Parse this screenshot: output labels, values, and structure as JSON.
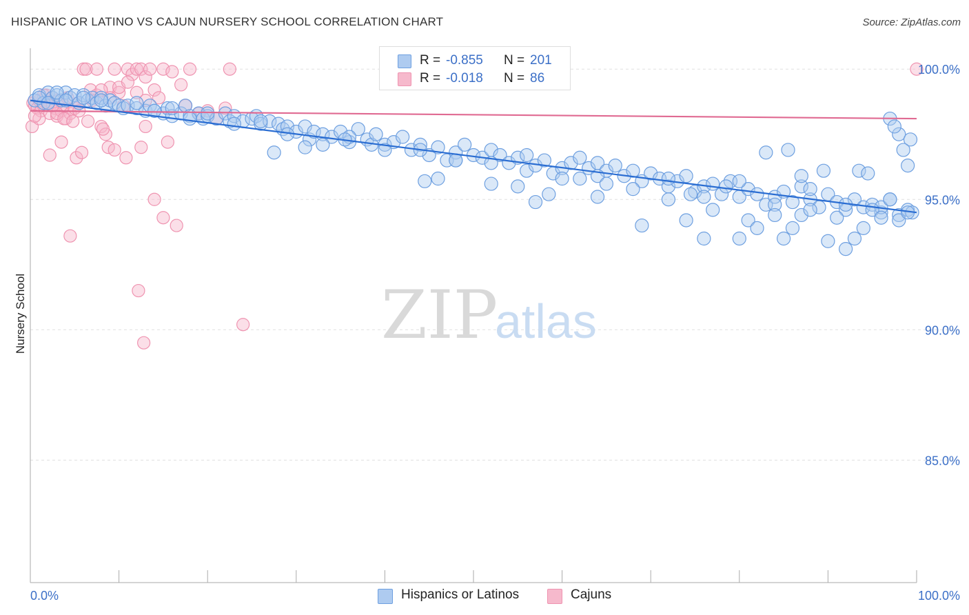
{
  "title": "HISPANIC OR LATINO VS CAJUN NURSERY SCHOOL CORRELATION CHART",
  "source": "Source: ZipAtlas.com",
  "watermark": {
    "zip": "ZIP",
    "atlas": "atlas"
  },
  "legend": {
    "rows": [
      {
        "r_label": "R =",
        "r_value": "-0.855",
        "n_label": "N =",
        "n_value": "201"
      },
      {
        "r_label": "R =",
        "r_value": "-0.018",
        "n_label": "N =",
        "n_value": "86"
      }
    ]
  },
  "bottom_legend": {
    "series1": "Hispanics or Latinos",
    "series2": "Cajuns"
  },
  "colors": {
    "blue_fill": "#aecbf0",
    "blue_stroke": "#6d9fe0",
    "blue_line": "#2a6dd2",
    "pink_fill": "#f6b9cc",
    "pink_stroke": "#ef93b0",
    "pink_line": "#e06a92",
    "tick_text": "#3b6fc7",
    "grid": "#e0e0e0"
  },
  "chart_data": {
    "type": "scatter",
    "title": "HISPANIC OR LATINO VS CAJUN NURSERY SCHOOL CORRELATION CHART",
    "xlabel": "",
    "ylabel": "Nursery School",
    "xlim": [
      0,
      100
    ],
    "ylim": [
      80.3,
      100.8
    ],
    "x_tick_labels": [
      "0.0%",
      "100.0%"
    ],
    "y_ticks": [
      85,
      90,
      95,
      100
    ],
    "y_tick_labels": [
      "85.0%",
      "90.0%",
      "95.0%",
      "100.0%"
    ],
    "grid": true,
    "legend_position": "top-center",
    "series": [
      {
        "name": "Hispanics or Latinos",
        "r": -0.855,
        "n": 201,
        "trend": {
          "x": [
            0,
            100
          ],
          "y": [
            98.8,
            94.5
          ]
        },
        "points": [
          [
            0.5,
            98.8
          ],
          [
            1,
            99
          ],
          [
            1.5,
            98.7
          ],
          [
            2,
            99.1
          ],
          [
            2.5,
            98.9
          ],
          [
            3,
            99
          ],
          [
            3.5,
            98.8
          ],
          [
            4,
            99.1
          ],
          [
            4.5,
            98.9
          ],
          [
            5,
            99
          ],
          [
            5.5,
            98.7
          ],
          [
            6,
            99
          ],
          [
            6.5,
            98.8
          ],
          [
            7,
            98.9
          ],
          [
            7.5,
            98.7
          ],
          [
            8,
            98.9
          ],
          [
            8.5,
            98.6
          ],
          [
            9,
            98.8
          ],
          [
            9.5,
            98.7
          ],
          [
            10,
            98.6
          ],
          [
            10.5,
            98.5
          ],
          [
            11,
            98.6
          ],
          [
            12,
            98.5
          ],
          [
            13,
            98.4
          ],
          [
            13.5,
            98.6
          ],
          [
            14,
            98.4
          ],
          [
            15,
            98.3
          ],
          [
            15.5,
            98.5
          ],
          [
            16,
            98.2
          ],
          [
            17,
            98.3
          ],
          [
            17.5,
            98.6
          ],
          [
            18,
            98.2
          ],
          [
            19,
            98.3
          ],
          [
            19.5,
            98.1
          ],
          [
            20,
            98.2
          ],
          [
            21,
            98.1
          ],
          [
            22,
            98.3
          ],
          [
            22.5,
            98
          ],
          [
            23,
            98.2
          ],
          [
            24,
            98
          ],
          [
            25,
            98.1
          ],
          [
            25.5,
            98.2
          ],
          [
            26,
            97.9
          ],
          [
            27,
            98
          ],
          [
            28,
            97.9
          ],
          [
            28.5,
            97.7
          ],
          [
            29,
            97.8
          ],
          [
            30,
            97.6
          ],
          [
            31,
            97.8
          ],
          [
            31.5,
            97.3
          ],
          [
            32,
            97.6
          ],
          [
            33,
            97.5
          ],
          [
            34,
            97.4
          ],
          [
            35,
            97.6
          ],
          [
            36,
            97.2
          ],
          [
            37,
            97.7
          ],
          [
            38,
            97.3
          ],
          [
            38.5,
            97.1
          ],
          [
            39,
            97.5
          ],
          [
            40,
            97.1
          ],
          [
            41,
            97.2
          ],
          [
            42,
            97.4
          ],
          [
            43,
            96.9
          ],
          [
            44,
            97.1
          ],
          [
            45,
            96.7
          ],
          [
            46,
            97
          ],
          [
            47,
            96.5
          ],
          [
            48,
            96.8
          ],
          [
            49,
            97.1
          ],
          [
            50,
            96.7
          ],
          [
            51,
            96.6
          ],
          [
            52,
            96.9
          ],
          [
            53,
            96.7
          ],
          [
            54,
            96.4
          ],
          [
            55,
            96.6
          ],
          [
            56,
            96.1
          ],
          [
            57,
            96.3
          ],
          [
            58,
            96.5
          ],
          [
            59,
            96
          ],
          [
            60,
            96.2
          ],
          [
            61,
            96.4
          ],
          [
            62,
            96.6
          ],
          [
            63,
            96.2
          ],
          [
            64,
            96.4
          ],
          [
            65,
            96.1
          ],
          [
            66,
            96.3
          ],
          [
            67,
            95.9
          ],
          [
            68,
            96.1
          ],
          [
            69,
            95.7
          ],
          [
            70,
            96
          ],
          [
            71,
            95.8
          ],
          [
            72,
            95.5
          ],
          [
            73,
            95.7
          ],
          [
            74,
            95.9
          ],
          [
            75,
            95.3
          ],
          [
            76,
            95.5
          ],
          [
            77,
            95.6
          ],
          [
            78,
            95.2
          ],
          [
            79,
            95.7
          ],
          [
            80,
            95.1
          ],
          [
            81,
            95.4
          ],
          [
            82,
            95.2
          ],
          [
            83,
            94.8
          ],
          [
            84,
            95.1
          ],
          [
            85,
            95.3
          ],
          [
            86,
            94.9
          ],
          [
            87,
            95.5
          ],
          [
            88,
            95
          ],
          [
            89,
            94.7
          ],
          [
            90,
            95.2
          ],
          [
            91,
            94.9
          ],
          [
            92,
            94.6
          ],
          [
            93,
            95
          ],
          [
            94,
            94.7
          ],
          [
            95,
            94.8
          ],
          [
            96,
            94.5
          ],
          [
            97,
            95
          ],
          [
            98,
            94.4
          ],
          [
            99,
            94.6
          ],
          [
            99.5,
            94.5
          ],
          [
            1,
            98.9
          ],
          [
            2,
            98.7
          ],
          [
            3,
            99.1
          ],
          [
            4,
            98.8
          ],
          [
            6,
            98.9
          ],
          [
            8,
            98.8
          ],
          [
            12,
            98.7
          ],
          [
            14,
            98.4
          ],
          [
            16,
            98.5
          ],
          [
            18,
            98.1
          ],
          [
            20,
            98.3
          ],
          [
            23,
            97.9
          ],
          [
            26,
            98
          ],
          [
            29,
            97.5
          ],
          [
            33,
            97.1
          ],
          [
            36,
            97.4
          ],
          [
            40,
            96.9
          ],
          [
            44,
            96.9
          ],
          [
            48,
            96.5
          ],
          [
            52,
            96.4
          ],
          [
            56,
            96.7
          ],
          [
            60,
            95.8
          ],
          [
            64,
            95.9
          ],
          [
            68,
            95.4
          ],
          [
            72,
            95.8
          ],
          [
            76,
            95.1
          ],
          [
            80,
            95.7
          ],
          [
            84,
            94.8
          ],
          [
            88,
            95.4
          ],
          [
            92,
            94.8
          ],
          [
            96,
            94.7
          ],
          [
            97,
            98.1
          ],
          [
            98,
            97.5
          ],
          [
            99,
            96.3
          ],
          [
            99.3,
            97.3
          ],
          [
            98.5,
            96.9
          ],
          [
            97.5,
            97.8
          ],
          [
            27.5,
            96.8
          ],
          [
            31,
            97
          ],
          [
            35.5,
            97.3
          ],
          [
            44.5,
            95.7
          ],
          [
            46,
            95.8
          ],
          [
            48,
            96.5
          ],
          [
            52,
            95.6
          ],
          [
            55,
            95.5
          ],
          [
            57,
            94.9
          ],
          [
            58.5,
            95.2
          ],
          [
            62,
            95.8
          ],
          [
            64,
            95.1
          ],
          [
            65,
            95.6
          ],
          [
            69,
            94
          ],
          [
            72,
            95
          ],
          [
            74,
            94.2
          ],
          [
            74.5,
            95.2
          ],
          [
            76,
            93.5
          ],
          [
            77,
            94.6
          ],
          [
            78.5,
            95.5
          ],
          [
            80,
            93.5
          ],
          [
            81,
            94.2
          ],
          [
            82,
            93.9
          ],
          [
            84,
            94.4
          ],
          [
            85,
            93.5
          ],
          [
            86,
            93.9
          ],
          [
            87,
            94.4
          ],
          [
            88,
            94.6
          ],
          [
            90,
            93.4
          ],
          [
            91,
            94.3
          ],
          [
            92,
            93.1
          ],
          [
            93,
            93.5
          ],
          [
            94,
            93.9
          ],
          [
            95,
            94.6
          ],
          [
            96,
            94.3
          ],
          [
            97,
            95
          ],
          [
            98,
            94.2
          ],
          [
            99,
            94.5
          ],
          [
            83,
            96.8
          ],
          [
            85.5,
            96.9
          ],
          [
            93.5,
            96.1
          ],
          [
            94.5,
            96
          ],
          [
            89.5,
            96.1
          ],
          [
            87,
            95.9
          ]
        ]
      },
      {
        "name": "Cajuns",
        "r": -0.018,
        "n": 86,
        "trend": {
          "x": [
            0,
            100
          ],
          "y": [
            98.4,
            98.1
          ]
        },
        "points": [
          [
            0.3,
            98.7
          ],
          [
            0.5,
            98.6
          ],
          [
            0.8,
            98.5
          ],
          [
            1,
            98.8
          ],
          [
            1.2,
            98.4
          ],
          [
            1.5,
            98.6
          ],
          [
            1.8,
            99
          ],
          [
            2,
            98.7
          ],
          [
            2.2,
            98.3
          ],
          [
            2.5,
            98.9
          ],
          [
            2.8,
            98.5
          ],
          [
            3,
            98.2
          ],
          [
            3.2,
            98.8
          ],
          [
            3.5,
            98.4
          ],
          [
            3.8,
            98.6
          ],
          [
            4,
            98.1
          ],
          [
            4.2,
            98.9
          ],
          [
            4.5,
            98.3
          ],
          [
            5,
            98.5
          ],
          [
            5.5,
            98.7
          ],
          [
            6,
            100
          ],
          [
            6.3,
            100
          ],
          [
            6.8,
            99.2
          ],
          [
            7,
            98.8
          ],
          [
            7.5,
            100
          ],
          [
            8,
            97.8
          ],
          [
            8.5,
            97.5
          ],
          [
            9,
            99.3
          ],
          [
            9.5,
            100
          ],
          [
            10,
            99.1
          ],
          [
            10.5,
            98.6
          ],
          [
            11,
            100
          ],
          [
            11.5,
            99.8
          ],
          [
            12,
            100
          ],
          [
            12.5,
            100
          ],
          [
            13,
            99.7
          ],
          [
            13.5,
            100
          ],
          [
            14,
            99.2
          ],
          [
            14.5,
            98.9
          ],
          [
            15,
            100
          ],
          [
            15.5,
            97.2
          ],
          [
            16,
            99.9
          ],
          [
            17,
            99.4
          ],
          [
            17.5,
            98.6
          ],
          [
            18,
            100
          ],
          [
            19,
            98.3
          ],
          [
            20,
            98.4
          ],
          [
            21,
            98.1
          ],
          [
            22,
            98.5
          ],
          [
            0.2,
            97.8
          ],
          [
            2.2,
            96.7
          ],
          [
            3.5,
            97.2
          ],
          [
            5.2,
            96.6
          ],
          [
            5.8,
            96.8
          ],
          [
            8.2,
            97.7
          ],
          [
            8.8,
            97
          ],
          [
            9.5,
            96.9
          ],
          [
            10.8,
            96.6
          ],
          [
            12.5,
            97
          ],
          [
            13,
            97.8
          ],
          [
            14,
            95
          ],
          [
            15,
            94.3
          ],
          [
            16.5,
            94
          ],
          [
            4.5,
            93.6
          ],
          [
            12.2,
            91.5
          ],
          [
            12.8,
            89.5
          ],
          [
            24,
            90.2
          ],
          [
            22.5,
            100
          ],
          [
            100,
            100
          ],
          [
            1,
            98.1
          ],
          [
            2,
            98.6
          ],
          [
            3,
            98.3
          ],
          [
            3.8,
            98.1
          ],
          [
            4.8,
            98
          ],
          [
            5.5,
            98.4
          ],
          [
            6.5,
            98
          ],
          [
            7.5,
            99
          ],
          [
            8,
            99.2
          ],
          [
            9,
            98.9
          ],
          [
            10,
            99.3
          ],
          [
            11,
            99.5
          ],
          [
            12,
            99.1
          ],
          [
            13,
            98.8
          ],
          [
            0.5,
            98.2
          ],
          [
            1.5,
            99
          ],
          [
            2.5,
            98.6
          ]
        ]
      }
    ]
  }
}
